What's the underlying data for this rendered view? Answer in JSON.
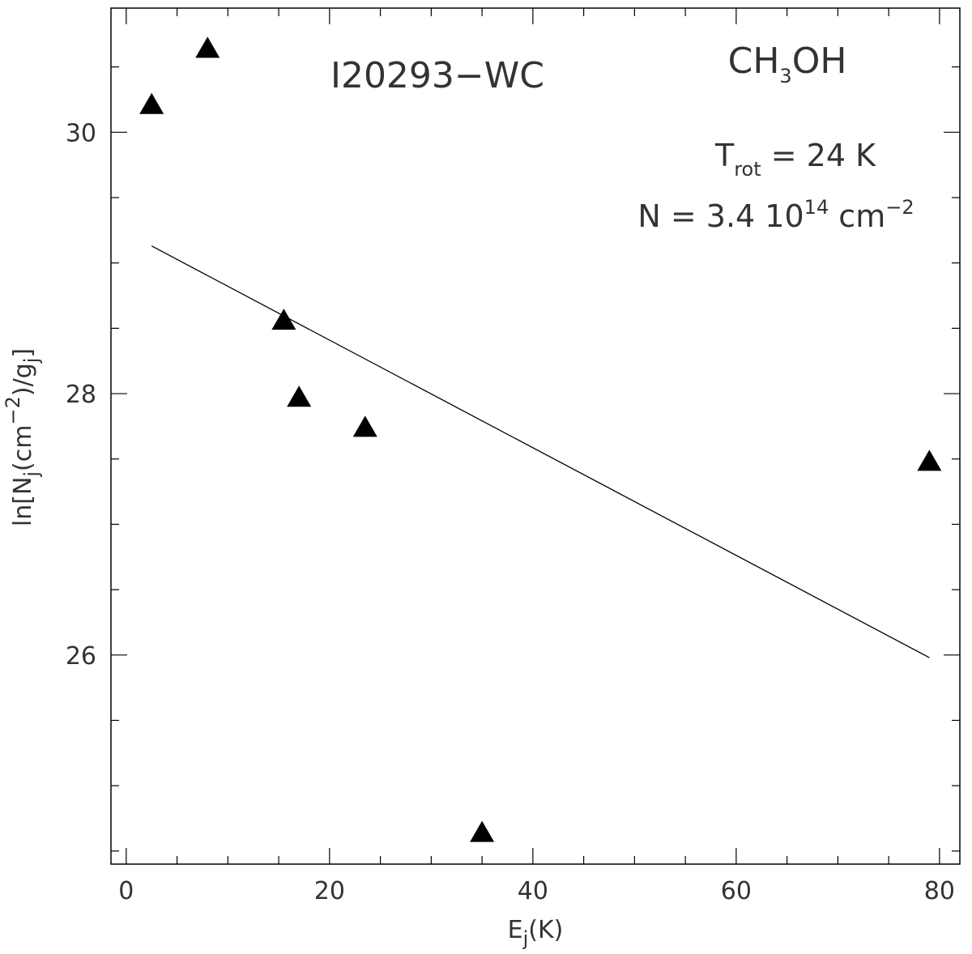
{
  "chart_data": {
    "type": "scatter",
    "xlabel": {
      "main": "E",
      "sub": "j",
      "rest": "(K)"
    },
    "ylabel": {
      "a": "ln[N",
      "sub1": "j",
      "b": "(cm",
      "sup": "−2",
      "c": ")/g",
      "sub2": "j",
      "d": "]"
    },
    "xlim": [
      -1.5,
      82
    ],
    "ylim": [
      24.4,
      30.95
    ],
    "x_ticks": [
      0,
      20,
      40,
      60,
      80
    ],
    "x_tick_labels": [
      "0",
      "20",
      "40",
      "60",
      "80"
    ],
    "x_minor_step": 5,
    "y_ticks": [
      26,
      28,
      30
    ],
    "y_tick_labels": [
      "26",
      "28",
      "30"
    ],
    "y_minor_step": 0.5,
    "grid": false,
    "points": [
      {
        "x": 2.5,
        "y": 30.22
      },
      {
        "x": 8.0,
        "y": 30.65
      },
      {
        "x": 15.5,
        "y": 28.57
      },
      {
        "x": 17.0,
        "y": 27.98
      },
      {
        "x": 23.5,
        "y": 27.75
      },
      {
        "x": 35.0,
        "y": 24.65
      },
      {
        "x": 79.0,
        "y": 27.49
      }
    ],
    "fit_line": {
      "x": [
        2.5,
        79.0
      ],
      "y": [
        29.13,
        25.98
      ]
    },
    "annotations": {
      "source": "I20293−WC",
      "molecule": {
        "a": "CH",
        "sub": "3",
        "b": "OH"
      },
      "trot": {
        "a": "T",
        "sub": "rot",
        "b": " = 24 K"
      },
      "ncol": {
        "a": "N = 3.4 10",
        "sup": "14",
        "b": " cm",
        "sup2": "−2"
      }
    }
  }
}
